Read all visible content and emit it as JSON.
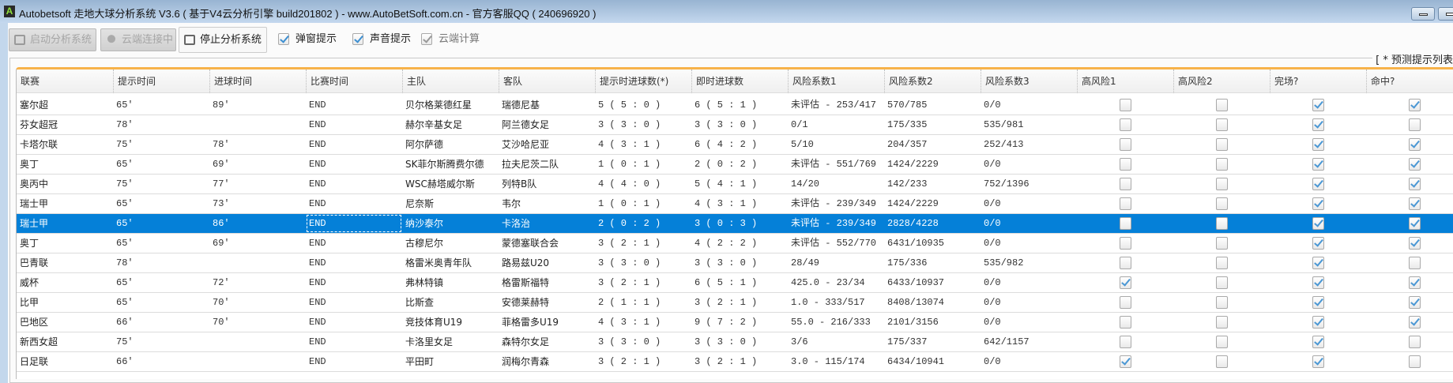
{
  "window": {
    "title": "Autobetsoft 走地大球分析系统 V3.6 ( 基于V4云分析引擎 build201802 ) - www.AutoBetSoft.com.cn - 官方客服QQ ( 240696920 )",
    "icon": "A"
  },
  "toolbar": {
    "start": "启动分析系统",
    "cloud": "云端连接中",
    "stop": "停止分析系统",
    "popup": "弹窗提示",
    "popup_checked": true,
    "sound": "声音提示",
    "sound_checked": true,
    "cloud_calc": "云端计算",
    "cloud_calc_checked": true
  },
  "group_label": "[ * 预测提示列表",
  "columns": [
    "联赛",
    "提示时间",
    "进球时间",
    "比赛时间",
    "主队",
    "客队",
    "提示时进球数(*)",
    "即时进球数",
    "风险系数1",
    "风险系数2",
    "风险系数3",
    "高风险1",
    "高风险2",
    "完场?",
    "命中?"
  ],
  "selected_row": 6,
  "accent": "#0580d8",
  "rows": [
    [
      "塞尔超",
      "65'",
      "89'",
      "END",
      "贝尔格莱德红星",
      "瑞德尼基",
      "5 ( 5 : 0 )",
      "6 ( 5 : 1 )",
      "未评估 - 253/417",
      "570/785",
      "0/0",
      false,
      false,
      true,
      true
    ],
    [
      "芬女超冠",
      "78'",
      "",
      "END",
      "赫尔辛基女足",
      "阿兰德女足",
      "3 ( 3 : 0 )",
      "3 ( 3 : 0 )",
      "0/1",
      "175/335",
      "535/981",
      false,
      false,
      true,
      false
    ],
    [
      "卡塔尔联",
      "75'",
      "78'",
      "END",
      "阿尔萨德",
      "艾沙哈尼亚",
      "4 ( 3 : 1 )",
      "6 ( 4 : 2 )",
      "5/10",
      "204/357",
      "252/413",
      false,
      false,
      true,
      true
    ],
    [
      "奥丁",
      "65'",
      "69'",
      "END",
      "SK菲尔斯腾费尔德",
      "拉夫尼茨二队",
      "1 ( 0 : 1 )",
      "2 ( 0 : 2 )",
      "未评估 - 551/769",
      "1424/2229",
      "0/0",
      false,
      false,
      true,
      true
    ],
    [
      "奥丙中",
      "75'",
      "77'",
      "END",
      "WSC赫塔威尔斯",
      "列特B队",
      "4 ( 4 : 0 )",
      "5 ( 4 : 1 )",
      "14/20",
      "142/233",
      "752/1396",
      false,
      false,
      true,
      true
    ],
    [
      "瑞士甲",
      "65'",
      "73'",
      "END",
      "尼奈斯",
      "韦尔",
      "1 ( 0 : 1 )",
      "4 ( 3 : 1 )",
      "未评估 - 239/349",
      "1424/2229",
      "0/0",
      false,
      false,
      true,
      true
    ],
    [
      "瑞士甲",
      "65'",
      "86'",
      "END",
      "纳沙泰尔",
      "卡洛治",
      "2 ( 0 : 2 )",
      "3 ( 0 : 3 )",
      "未评估 - 239/349",
      "2828/4228",
      "0/0",
      false,
      false,
      true,
      true
    ],
    [
      "奥丁",
      "65'",
      "69'",
      "END",
      "古穆尼尔",
      "蒙德塞联合会",
      "3 ( 2 : 1 )",
      "4 ( 2 : 2 )",
      "未评估 - 552/770",
      "6431/10935",
      "0/0",
      false,
      false,
      true,
      true
    ],
    [
      "巴青联",
      "78'",
      "",
      "END",
      "格雷米奥青年队",
      "路易兹U20",
      "3 ( 3 : 0 )",
      "3 ( 3 : 0 )",
      "28/49",
      "175/336",
      "535/982",
      false,
      false,
      true,
      false
    ],
    [
      "威杯",
      "65'",
      "72'",
      "END",
      "弗林特镇",
      "格雷斯福特",
      "3 ( 2 : 1 )",
      "6 ( 5 : 1 )",
      "425.0 - 23/34",
      "6433/10937",
      "0/0",
      true,
      false,
      true,
      true
    ],
    [
      "比甲",
      "65'",
      "70'",
      "END",
      "比斯查",
      "安德莱赫特",
      "2 ( 1 : 1 )",
      "3 ( 2 : 1 )",
      "1.0 - 333/517",
      "8408/13074",
      "0/0",
      false,
      false,
      true,
      true
    ],
    [
      "巴地区",
      "66'",
      "70'",
      "END",
      "竞技体育U19",
      "菲格雷多U19",
      "4 ( 3 : 1 )",
      "9 ( 7 : 2 )",
      "55.0 - 216/333",
      "2101/3156",
      "0/0",
      false,
      false,
      true,
      true
    ],
    [
      "新西女超",
      "75'",
      "",
      "END",
      "卡洛里女足",
      "森特尔女足",
      "3 ( 3 : 0 )",
      "3 ( 3 : 0 )",
      "3/6",
      "175/337",
      "642/1157",
      false,
      false,
      true,
      false
    ],
    [
      "日足联",
      "66'",
      "",
      "END",
      "平田町",
      "润梅尔青森",
      "3 ( 2 : 1 )",
      "3 ( 2 : 1 )",
      "3.0 - 115/174",
      "6434/10941",
      "0/0",
      true,
      false,
      true,
      false
    ]
  ]
}
